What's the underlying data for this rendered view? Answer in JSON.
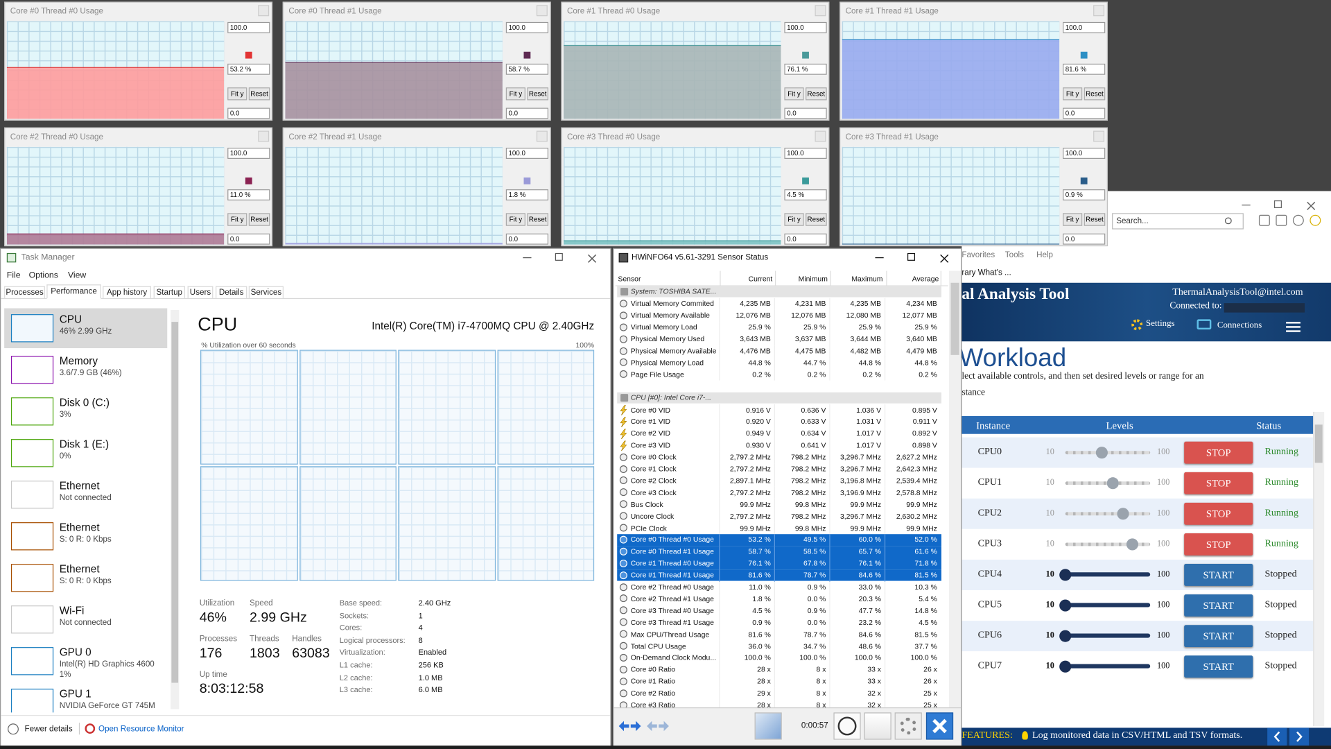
{
  "graph_windows": [
    {
      "title": "Core #0 Thread #0 Usage",
      "max": {
        "value": 100,
        "label": "100.0"
      },
      "min": {
        "value": 0,
        "label": "0.0"
      },
      "value": 53.2,
      "value_label": "53.2 %",
      "color": "#e23434",
      "fill": "#ff9d9d",
      "fit_button": "Fit y",
      "reset_button": "Reset"
    },
    {
      "title": "Core #0 Thread #1 Usage",
      "max": {
        "value": 100,
        "label": "100.0"
      },
      "min": {
        "value": 0,
        "label": "0.0"
      },
      "value": 58.7,
      "value_label": "58.7 %",
      "color": "#5e2a52",
      "fill": "#a8929f",
      "fit_button": "Fit y",
      "reset_button": "Reset"
    },
    {
      "title": "Core #1 Thread #0 Usage",
      "max": {
        "value": 100,
        "label": "100.0"
      },
      "min": {
        "value": 0,
        "label": "0.0"
      },
      "value": 76.1,
      "value_label": "76.1 %",
      "color": "#4a9a9a",
      "fill": "#a9b6b6",
      "fit_button": "Fit y",
      "reset_button": "Reset"
    },
    {
      "title": "Core #1 Thread #1 Usage",
      "max": {
        "value": 100,
        "label": "100.0"
      },
      "min": {
        "value": 0,
        "label": "0.0"
      },
      "value": 81.6,
      "value_label": "81.6 %",
      "color": "#2d8fc4",
      "fill": "#9aabef",
      "fit_button": "Fit y",
      "reset_button": "Reset"
    },
    {
      "title": "Core #2 Thread #0 Usage",
      "max": {
        "value": 100,
        "label": "100.0"
      },
      "min": {
        "value": 0,
        "label": "0.0"
      },
      "value": 11.0,
      "value_label": "11.0 %",
      "color": "#8b2252",
      "fill": "#b07a95",
      "fit_button": "Fit y",
      "reset_button": "Reset"
    },
    {
      "title": "Core #2 Thread #1 Usage",
      "max": {
        "value": 100,
        "label": "100.0"
      },
      "min": {
        "value": 0,
        "label": "0.0"
      },
      "value": 1.8,
      "value_label": "1.8 %",
      "color": "#9a9ad8",
      "fill": "#b4b4ec",
      "fit_button": "Fit y",
      "reset_button": "Reset"
    },
    {
      "title": "Core #3 Thread #0 Usage",
      "max": {
        "value": 100,
        "label": "100.0"
      },
      "min": {
        "value": 0,
        "label": "0.0"
      },
      "value": 4.5,
      "value_label": "4.5 %",
      "color": "#3a9a9a",
      "fill": "#7fc4c4",
      "fit_button": "Fit y",
      "reset_button": "Reset"
    },
    {
      "title": "Core #3 Thread #1 Usage",
      "max": {
        "value": 100,
        "label": "100.0"
      },
      "min": {
        "value": 0,
        "label": "0.0"
      },
      "value": 0.9,
      "value_label": "0.9 %",
      "color": "#2a5d8a",
      "fill": "#6f9ac2",
      "fit_button": "Fit y",
      "reset_button": "Reset"
    }
  ],
  "task_manager": {
    "title": "Task Manager",
    "menu": [
      "File",
      "Options",
      "View"
    ],
    "tabs": [
      "Processes",
      "Performance",
      "App history",
      "Startup",
      "Users",
      "Details",
      "Services"
    ],
    "selected_tab": 1,
    "sidebar": [
      {
        "name": "CPU",
        "details": [
          "46% 2.99 GHz"
        ],
        "color": "#1b7fc1",
        "selected": true
      },
      {
        "name": "Memory",
        "details": [
          "3.6/7.9 GB (46%)"
        ],
        "color": "#8b12ae",
        "selected": false
      },
      {
        "name": "Disk 0 (C:)",
        "details": [
          "3%"
        ],
        "color": "#4da60c",
        "selected": false
      },
      {
        "name": "Disk 1 (E:)",
        "details": [
          "0%"
        ],
        "color": "#4da60c",
        "selected": false
      },
      {
        "name": "Ethernet",
        "details": [
          "Not connected"
        ],
        "color": "#c8c8c8",
        "selected": false
      },
      {
        "name": "Ethernet",
        "details": [
          "S: 0 R: 0 Kbps"
        ],
        "color": "#a74f01",
        "selected": false
      },
      {
        "name": "Ethernet",
        "details": [
          "S: 0 R: 0 Kbps"
        ],
        "color": "#a74f01",
        "selected": false
      },
      {
        "name": "Wi-Fi",
        "details": [
          "Not connected"
        ],
        "color": "#c8c8c8",
        "selected": false
      },
      {
        "name": "GPU 0",
        "details": [
          "Intel(R) HD Graphics 4600",
          "1%"
        ],
        "color": "#1b7fc1",
        "selected": false
      },
      {
        "name": "GPU 1",
        "details": [
          "NVIDIA GeForce GT 745M"
        ],
        "color": "#1b7fc1",
        "selected": false
      }
    ],
    "heading": "CPU",
    "processor": "Intel(R) Core(TM) i7-4700MQ CPU @ 2.40GHz",
    "graph_caption": "% Utilization over 60 seconds",
    "graph_max": "100%",
    "stats": [
      {
        "label": "Utilization",
        "value": "46%"
      },
      {
        "label": "Speed",
        "value": "2.99 GHz"
      },
      {
        "label": "Processes",
        "value": "176"
      },
      {
        "label": "Threads",
        "value": "1803"
      },
      {
        "label": "Handles",
        "value": "63083"
      },
      {
        "label": "Up time",
        "value": "8:03:12:58"
      }
    ],
    "specs": [
      [
        "Base speed:",
        "2.40 GHz"
      ],
      [
        "Sockets:",
        "1"
      ],
      [
        "Cores:",
        "4"
      ],
      [
        "Logical processors:",
        "8"
      ],
      [
        "Virtualization:",
        "Enabled"
      ],
      [
        "L1 cache:",
        "256 KB"
      ],
      [
        "L2 cache:",
        "1.0 MB"
      ],
      [
        "L3 cache:",
        "6.0 MB"
      ]
    ],
    "fewer_details": "Fewer details",
    "resource_monitor": "Open Resource Monitor"
  },
  "hwinfo": {
    "title": "HWiNFO64 v5.61-3291 Sensor Status",
    "columns": [
      "Sensor",
      "Current",
      "Minimum",
      "Maximum",
      "Average"
    ],
    "rows": [
      {
        "section": "System: TOSHIBA SATE..."
      },
      {
        "cells": [
          "Virtual Memory Commited",
          "4,235 MB",
          "4,231 MB",
          "4,235 MB",
          "4,234 MB"
        ],
        "icon": "gauge"
      },
      {
        "cells": [
          "Virtual Memory Available",
          "12,076 MB",
          "12,076 MB",
          "12,080 MB",
          "12,077 MB"
        ],
        "icon": "gauge"
      },
      {
        "cells": [
          "Virtual Memory Load",
          "25.9 %",
          "25.9 %",
          "25.9 %",
          "25.9 %"
        ],
        "icon": "gauge"
      },
      {
        "cells": [
          "Physical Memory Used",
          "3,643 MB",
          "3,637 MB",
          "3,644 MB",
          "3,640 MB"
        ],
        "icon": "gauge"
      },
      {
        "cells": [
          "Physical Memory Available",
          "4,476 MB",
          "4,475 MB",
          "4,482 MB",
          "4,479 MB"
        ],
        "icon": "gauge"
      },
      {
        "cells": [
          "Physical Memory Load",
          "44.8 %",
          "44.7 %",
          "44.8 %",
          "44.8 %"
        ],
        "icon": "gauge"
      },
      {
        "cells": [
          "Page File Usage",
          "0.2 %",
          "0.2 %",
          "0.2 %",
          "0.2 %"
        ],
        "icon": "gauge"
      },
      {
        "section": "CPU [#0]: Intel Core i7-..."
      },
      {
        "cells": [
          "Core #0 VID",
          "0.916 V",
          "0.636 V",
          "1.036 V",
          "0.895 V"
        ],
        "icon": "bolt"
      },
      {
        "cells": [
          "Core #1 VID",
          "0.920 V",
          "0.633 V",
          "1.031 V",
          "0.911 V"
        ],
        "icon": "bolt"
      },
      {
        "cells": [
          "Core #2 VID",
          "0.949 V",
          "0.634 V",
          "1.017 V",
          "0.892 V"
        ],
        "icon": "bolt"
      },
      {
        "cells": [
          "Core #3 VID",
          "0.930 V",
          "0.641 V",
          "1.017 V",
          "0.898 V"
        ],
        "icon": "bolt"
      },
      {
        "cells": [
          "Core #0 Clock",
          "2,797.2 MHz",
          "798.2 MHz",
          "3,296.7 MHz",
          "2,627.2 MHz"
        ],
        "icon": "gauge"
      },
      {
        "cells": [
          "Core #1 Clock",
          "2,797.2 MHz",
          "798.2 MHz",
          "3,296.7 MHz",
          "2,642.3 MHz"
        ],
        "icon": "gauge"
      },
      {
        "cells": [
          "Core #2 Clock",
          "2,897.1 MHz",
          "798.2 MHz",
          "3,196.8 MHz",
          "2,539.4 MHz"
        ],
        "icon": "gauge"
      },
      {
        "cells": [
          "Core #3 Clock",
          "2,797.2 MHz",
          "798.2 MHz",
          "3,196.9 MHz",
          "2,578.8 MHz"
        ],
        "icon": "gauge"
      },
      {
        "cells": [
          "Bus Clock",
          "99.9 MHz",
          "99.8 MHz",
          "99.9 MHz",
          "99.9 MHz"
        ],
        "icon": "gauge"
      },
      {
        "cells": [
          "Uncore Clock",
          "2,797.2 MHz",
          "798.2 MHz",
          "3,296.7 MHz",
          "2,630.2 MHz"
        ],
        "icon": "gauge"
      },
      {
        "cells": [
          "PCIe Clock",
          "99.9 MHz",
          "99.8 MHz",
          "99.9 MHz",
          "99.9 MHz"
        ],
        "icon": "gauge"
      },
      {
        "cells": [
          "Core #0 Thread #0 Usage",
          "53.2 %",
          "49.5 %",
          "60.0 %",
          "52.0 %"
        ],
        "icon": "gauge",
        "selected": true
      },
      {
        "cells": [
          "Core #0 Thread #1 Usage",
          "58.7 %",
          "58.5 %",
          "65.7 %",
          "61.6 %"
        ],
        "icon": "gauge",
        "selected": true
      },
      {
        "cells": [
          "Core #1 Thread #0 Usage",
          "76.1 %",
          "67.8 %",
          "76.1 %",
          "71.8 %"
        ],
        "icon": "gauge",
        "selected": true
      },
      {
        "cells": [
          "Core #1 Thread #1 Usage",
          "81.6 %",
          "78.7 %",
          "84.6 %",
          "81.5 %"
        ],
        "icon": "gauge",
        "selected": true
      },
      {
        "cells": [
          "Core #2 Thread #0 Usage",
          "11.0 %",
          "0.9 %",
          "33.0 %",
          "10.3 %"
        ],
        "icon": "gauge"
      },
      {
        "cells": [
          "Core #2 Thread #1 Usage",
          "1.8 %",
          "0.0 %",
          "20.3 %",
          "5.4 %"
        ],
        "icon": "gauge"
      },
      {
        "cells": [
          "Core #3 Thread #0 Usage",
          "4.5 %",
          "0.9 %",
          "47.7 %",
          "14.8 %"
        ],
        "icon": "gauge"
      },
      {
        "cells": [
          "Core #3 Thread #1 Usage",
          "0.9 %",
          "0.0 %",
          "23.2 %",
          "4.5 %"
        ],
        "icon": "gauge"
      },
      {
        "cells": [
          "Max CPU/Thread Usage",
          "81.6 %",
          "78.7 %",
          "84.6 %",
          "81.5 %"
        ],
        "icon": "gauge"
      },
      {
        "cells": [
          "Total CPU Usage",
          "36.0 %",
          "34.7 %",
          "48.6 %",
          "37.7 %"
        ],
        "icon": "gauge"
      },
      {
        "cells": [
          "On-Demand Clock Modu...",
          "100.0 %",
          "100.0 %",
          "100.0 %",
          "100.0 %"
        ],
        "icon": "gauge"
      },
      {
        "cells": [
          "Core #0 Ratio",
          "28 x",
          "8 x",
          "33 x",
          "26 x"
        ],
        "icon": "gauge"
      },
      {
        "cells": [
          "Core #1 Ratio",
          "28 x",
          "8 x",
          "33 x",
          "26 x"
        ],
        "icon": "gauge"
      },
      {
        "cells": [
          "Core #2 Ratio",
          "29 x",
          "8 x",
          "32 x",
          "25 x"
        ],
        "icon": "gauge"
      },
      {
        "cells": [
          "Core #3 Ratio",
          "28 x",
          "8 x",
          "32 x",
          "25 x"
        ],
        "icon": "gauge"
      }
    ],
    "timer": "0:00:57"
  },
  "thermal": {
    "search": "Search...",
    "menu": [
      "Favorites",
      "Tools",
      "Help"
    ],
    "link": "rary What's ...",
    "brand": "al Analysis Tool",
    "email": "ThermalAnalysisTool@intel.com",
    "connected": "Connected to:",
    "settings": "Settings",
    "connections": "Connections",
    "heading": "Workload",
    "description": [
      "lect available controls, and then set desired levels or range for an",
      "stance"
    ],
    "columns": [
      "Instance",
      "Levels",
      "Status"
    ],
    "rows": [
      {
        "instance": "CPU0",
        "min": 10,
        "max": 100,
        "level": 49,
        "button": "STOP",
        "status": "Running",
        "running": true
      },
      {
        "instance": "CPU1",
        "min": 10,
        "max": 100,
        "level": 60,
        "button": "STOP",
        "status": "Running",
        "running": true
      },
      {
        "instance": "CPU2",
        "min": 10,
        "max": 100,
        "level": 71,
        "button": "STOP",
        "status": "Running",
        "running": true
      },
      {
        "instance": "CPU3",
        "min": 10,
        "max": 100,
        "level": 81,
        "button": "STOP",
        "status": "Running",
        "running": true
      },
      {
        "instance": "CPU4",
        "min": 10,
        "max": 100,
        "level": 10,
        "button": "START",
        "status": "Stopped",
        "running": false
      },
      {
        "instance": "CPU5",
        "min": 10,
        "max": 100,
        "level": 10,
        "button": "START",
        "status": "Stopped",
        "running": false
      },
      {
        "instance": "CPU6",
        "min": 10,
        "max": 100,
        "level": 10,
        "button": "START",
        "status": "Stopped",
        "running": false
      },
      {
        "instance": "CPU7",
        "min": 10,
        "max": 100,
        "level": 10,
        "button": "START",
        "status": "Stopped",
        "running": false
      }
    ],
    "features_label": "FEATURES:",
    "feature": "Log monitored data in CSV/HTML and TSV formats."
  }
}
